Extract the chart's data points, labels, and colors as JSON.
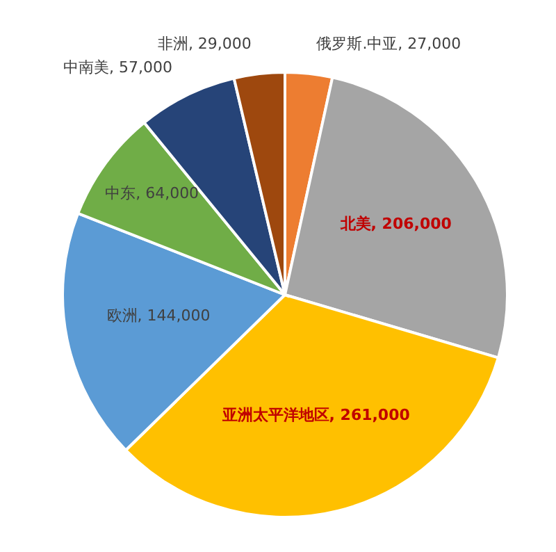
{
  "chart_data": {
    "type": "pie",
    "categories": [
      "俄罗斯.中亚",
      "北美",
      "亚洲太平洋地区",
      "欧洲",
      "中东",
      "中南美",
      "非洲"
    ],
    "values": [
      27000,
      206000,
      261000,
      144000,
      64000,
      57000,
      29000
    ],
    "value_labels": [
      "27,000",
      "206,000",
      "261,000",
      "144,000",
      "64,000",
      "57,000",
      "29,000"
    ],
    "colors": [
      "#ed7d31",
      "#a5a5a5",
      "#ffc000",
      "#5b9bd5",
      "#70ad47",
      "#264478",
      "#9e480e"
    ]
  }
}
